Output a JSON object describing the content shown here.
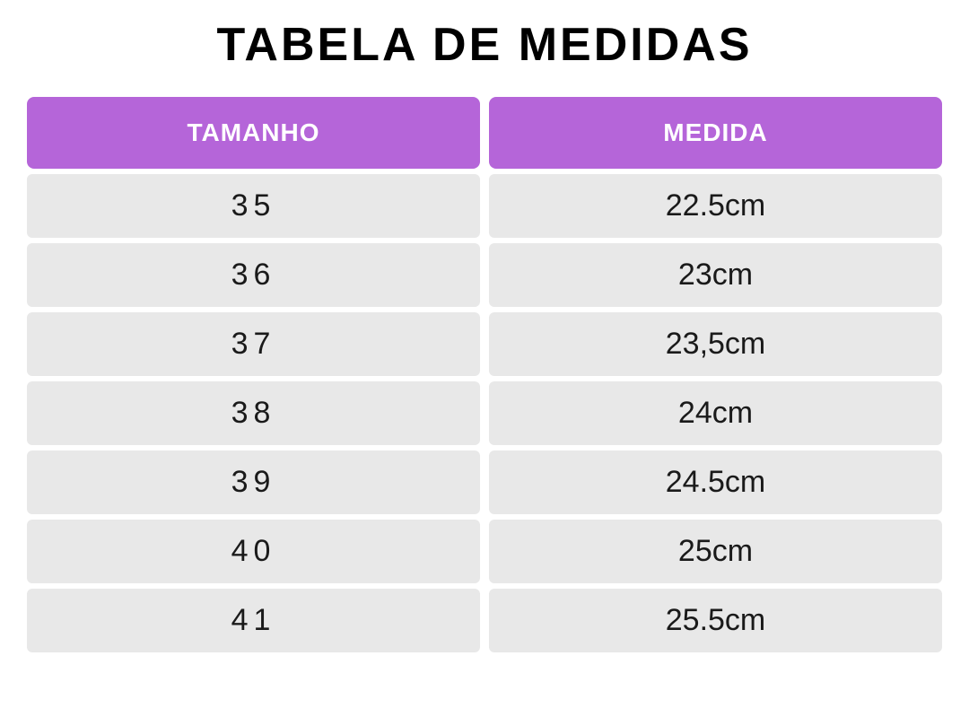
{
  "title": "TABELA DE MEDIDAS",
  "table": {
    "columns": [
      "TAMANHO",
      "MEDIDA"
    ],
    "rows": [
      [
        "35",
        "22.5cm"
      ],
      [
        "36",
        "23cm"
      ],
      [
        "37",
        "23,5cm"
      ],
      [
        "38",
        "24cm"
      ],
      [
        "39",
        "24.5cm"
      ],
      [
        "40",
        "25cm"
      ],
      [
        "41",
        "25.5cm"
      ]
    ],
    "header_bg_color": "#b565d9",
    "header_text_color": "#ffffff",
    "row_bg_color": "#e8e8e8",
    "row_text_color": "#1a1a1a",
    "title_fontsize": 52,
    "header_fontsize": 28,
    "cell_fontsize": 34,
    "border_radius_header": 8,
    "border_radius_cell": 6,
    "column_gap": 10,
    "row_gap": 6
  }
}
